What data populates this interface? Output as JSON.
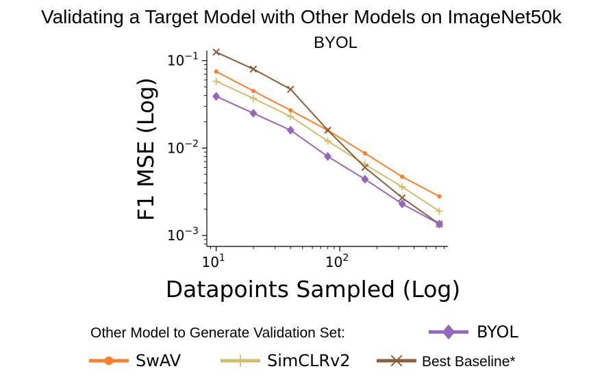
{
  "chart_data": {
    "type": "line",
    "title": "Validating a Target Model with Other Models on ImageNet50k",
    "subtitle": "BYOL",
    "xlabel": "Datapoints Sampled (Log)",
    "ylabel": "F1 MSE (Log)",
    "xscale": "log",
    "yscale": "log",
    "xlim": [
      8.4,
      750
    ],
    "ylim": [
      0.00075,
      0.13
    ],
    "x_ticks": [
      {
        "value": 10,
        "base": "10",
        "exp": "1"
      },
      {
        "value": 100,
        "base": "10",
        "exp": "2"
      }
    ],
    "y_ticks": [
      {
        "value": 0.001,
        "base": "10",
        "exp": "−3"
      },
      {
        "value": 0.01,
        "base": "10",
        "exp": "−2"
      },
      {
        "value": 0.1,
        "base": "10",
        "exp": "−1"
      }
    ],
    "grid": false,
    "legend_title": "Other Model to Generate Validation Set:",
    "legend_position": "below",
    "series": [
      {
        "name": "BYOL",
        "color": "#9467bd",
        "marker": "diamond",
        "x": [
          10,
          20,
          40,
          80,
          160,
          320,
          640
        ],
        "y": [
          0.039,
          0.025,
          0.016,
          0.008,
          0.0044,
          0.0023,
          0.00135
        ]
      },
      {
        "name": "SwAV",
        "color": "#ff7f2a",
        "marker": "circle",
        "x": [
          10,
          20,
          40,
          80,
          160,
          320,
          640
        ],
        "y": [
          0.075,
          0.045,
          0.027,
          0.016,
          0.0087,
          0.0047,
          0.0028
        ]
      },
      {
        "name": "SimCLRv2",
        "color": "#d4bc6a",
        "marker": "plus",
        "x": [
          10,
          20,
          40,
          80,
          160,
          320,
          640
        ],
        "y": [
          0.058,
          0.037,
          0.023,
          0.012,
          0.0065,
          0.0036,
          0.0019
        ]
      },
      {
        "name": "Best Baseline*",
        "color": "#8c5f3a",
        "marker": "x",
        "x": [
          10,
          20,
          40,
          80,
          160,
          320,
          640
        ],
        "y": [
          0.125,
          0.08,
          0.047,
          0.016,
          0.006,
          0.0027,
          0.00135
        ]
      }
    ]
  }
}
